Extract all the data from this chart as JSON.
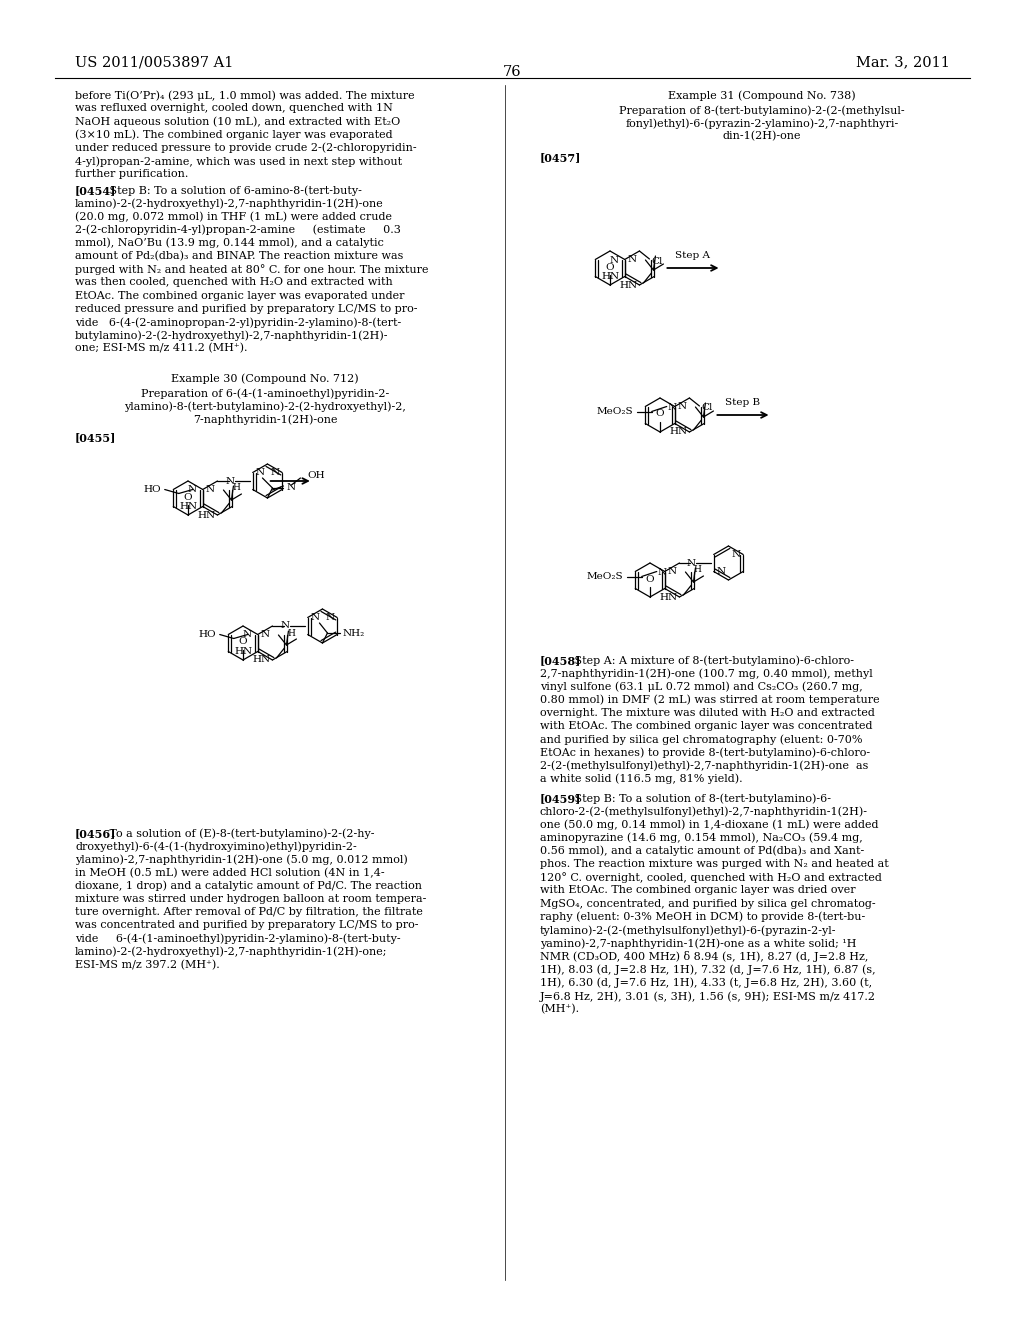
{
  "bg": "#ffffff",
  "header_left": "US 2011/0053897 A1",
  "header_right": "Mar. 3, 2011",
  "page_num": "76"
}
